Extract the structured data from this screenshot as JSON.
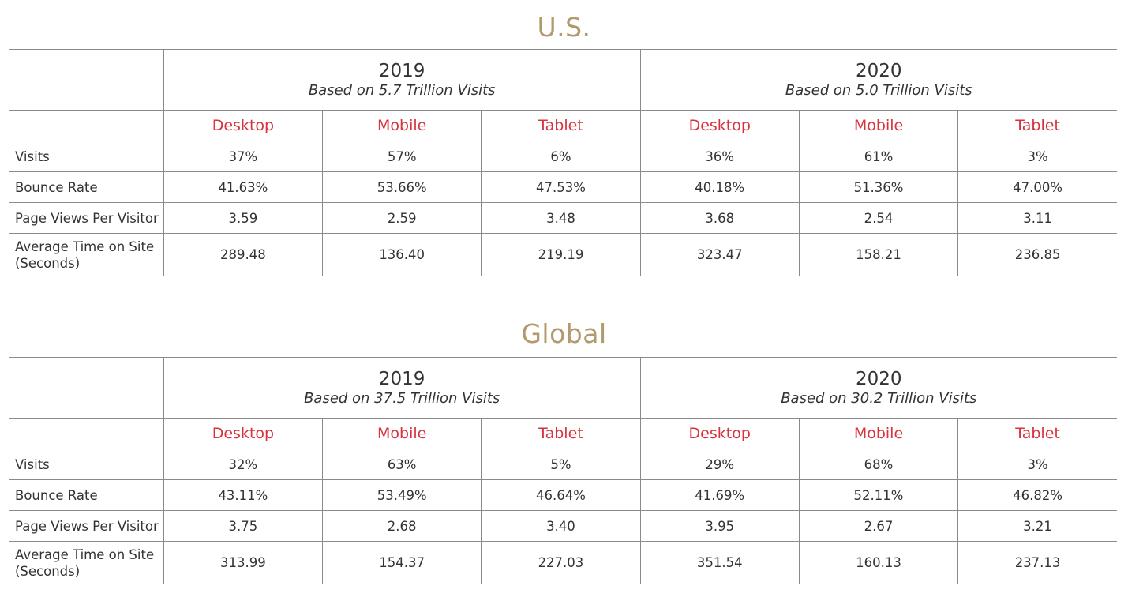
{
  "tables": [
    {
      "title": "U.S.",
      "periods": [
        {
          "year": "2019",
          "basis": "Based on 5.7 Trillion Visits"
        },
        {
          "year": "2020",
          "basis": "Based on 5.0 Trillion Visits"
        }
      ],
      "devices": [
        "Desktop",
        "Mobile",
        "Tablet",
        "Desktop",
        "Mobile",
        "Tablet"
      ],
      "rows": [
        {
          "label": "Visits",
          "values": [
            "37%",
            "57%",
            "6%",
            "36%",
            "61%",
            "3%"
          ]
        },
        {
          "label": "Bounce Rate",
          "values": [
            "41.63%",
            "53.66%",
            "47.53%",
            "40.18%",
            "51.36%",
            "47.00%"
          ]
        },
        {
          "label": "Page Views Per Visitor",
          "values": [
            "3.59",
            "2.59",
            "3.48",
            "3.68",
            "2.54",
            "3.11"
          ]
        },
        {
          "label": "Average Time on Site",
          "label2": "(Seconds)",
          "values": [
            "289.48",
            "136.40",
            "219.19",
            "323.47",
            "158.21",
            "236.85"
          ]
        }
      ]
    },
    {
      "title": "Global",
      "periods": [
        {
          "year": "2019",
          "basis": "Based on 37.5 Trillion Visits"
        },
        {
          "year": "2020",
          "basis": "Based on 30.2 Trillion Visits"
        }
      ],
      "devices": [
        "Desktop",
        "Mobile",
        "Tablet",
        "Desktop",
        "Mobile",
        "Tablet"
      ],
      "rows": [
        {
          "label": "Visits",
          "values": [
            "32%",
            "63%",
            "5%",
            "29%",
            "68%",
            "3%"
          ]
        },
        {
          "label": "Bounce Rate",
          "values": [
            "43.11%",
            "53.49%",
            "46.64%",
            "41.69%",
            "52.11%",
            "46.82%"
          ]
        },
        {
          "label": "Page Views Per Visitor",
          "values": [
            "3.75",
            "2.68",
            "3.40",
            "3.95",
            "2.67",
            "3.21"
          ]
        },
        {
          "label": "Average Time on Site",
          "label2": "(Seconds)",
          "values": [
            "313.99",
            "154.37",
            "227.03",
            "351.54",
            "160.13",
            "237.13"
          ]
        }
      ]
    }
  ],
  "colors": {
    "title": "#b39a6e",
    "device": "#d8323c",
    "text": "#333333",
    "rule": "#8a8a8a"
  }
}
